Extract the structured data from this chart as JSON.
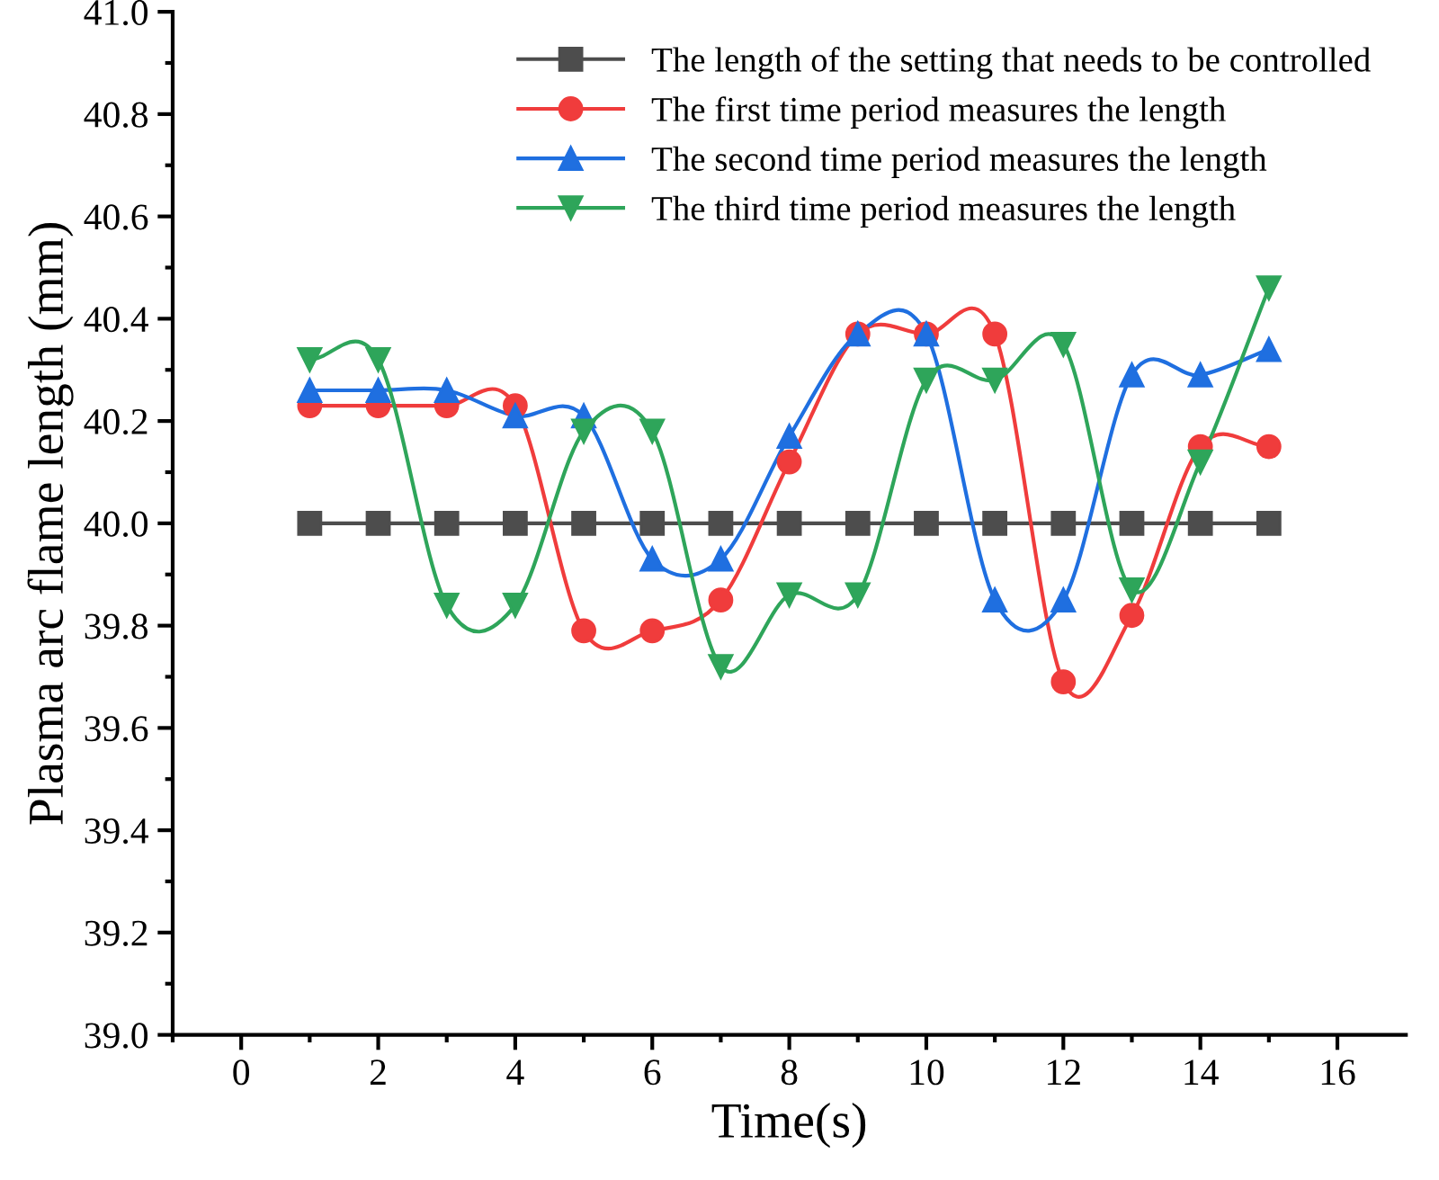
{
  "chart_data": {
    "type": "line",
    "xlabel": "Time(s)",
    "ylabel": "Plasma arc flame length (mm)",
    "x": [
      1,
      2,
      3,
      4,
      5,
      6,
      7,
      8,
      9,
      10,
      11,
      12,
      13,
      14,
      15
    ],
    "series": [
      {
        "name": "The length of the setting that needs to be controlled",
        "color": "#4d4d4d",
        "marker": "square",
        "values": [
          40.0,
          40.0,
          40.0,
          40.0,
          40.0,
          40.0,
          40.0,
          40.0,
          40.0,
          40.0,
          40.0,
          40.0,
          40.0,
          40.0,
          40.0
        ]
      },
      {
        "name": "The first time period measures the length",
        "color": "#f03c3c",
        "marker": "circle",
        "values": [
          40.23,
          40.23,
          40.23,
          40.23,
          39.79,
          39.79,
          39.85,
          40.12,
          40.37,
          40.37,
          40.37,
          39.69,
          39.82,
          40.15,
          40.15
        ]
      },
      {
        "name": "The second time period measures the length",
        "color": "#1f6fe0",
        "marker": "triangle",
        "values": [
          40.26,
          40.26,
          40.26,
          40.21,
          40.21,
          39.93,
          39.93,
          40.17,
          40.37,
          40.37,
          39.85,
          39.85,
          40.29,
          40.29,
          40.34
        ]
      },
      {
        "name": "The third time period measures the length",
        "color": "#2ea55a",
        "marker": "triangle_down",
        "values": [
          40.32,
          40.32,
          39.84,
          39.84,
          40.18,
          40.18,
          39.72,
          39.86,
          39.86,
          40.28,
          40.28,
          40.35,
          39.87,
          40.12,
          40.46
        ]
      }
    ],
    "xlim": [
      -1,
      17
    ],
    "xticks": [
      0,
      2,
      4,
      6,
      8,
      10,
      12,
      14,
      16
    ],
    "ylim": [
      39.0,
      41.0
    ],
    "yticks": [
      {
        "value": 39.0,
        "label": "39.0"
      },
      {
        "value": 39.2,
        "label": "39.2"
      },
      {
        "value": 39.4,
        "label": "39.4"
      },
      {
        "value": 39.6,
        "label": "39.6"
      },
      {
        "value": 39.8,
        "label": "39.8"
      },
      {
        "value": 40.0,
        "label": "40.0"
      },
      {
        "value": 40.2,
        "label": "40.2"
      },
      {
        "value": 40.4,
        "label": "40.4"
      },
      {
        "value": 40.6,
        "label": "40.6"
      },
      {
        "value": 40.8,
        "label": "40.8"
      },
      {
        "value": 41.0,
        "label": "41.0"
      }
    ],
    "grid": false,
    "legend": "top right"
  }
}
